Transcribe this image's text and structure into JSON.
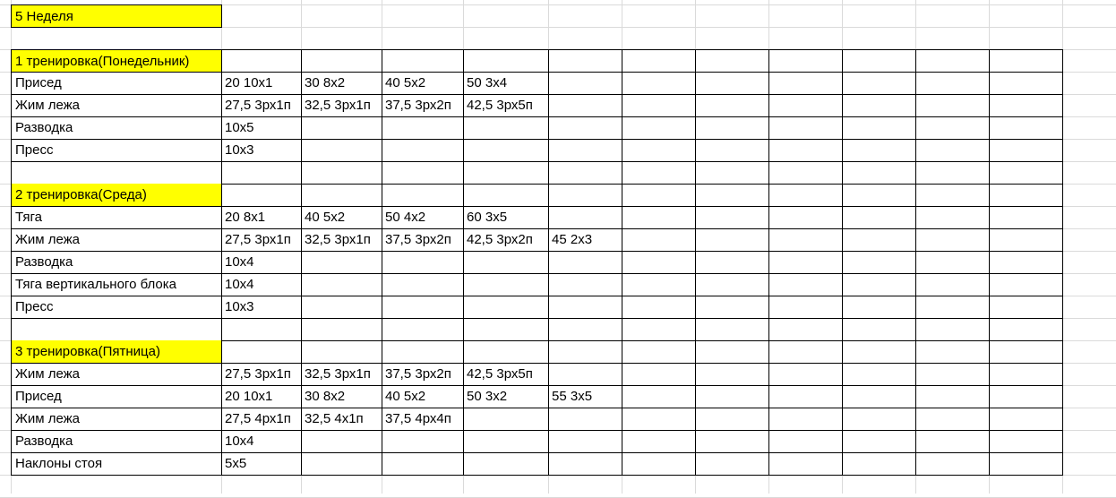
{
  "highlight_color": "#ffff00",
  "title": {
    "text": "5 Неделя",
    "highlighted": true
  },
  "rows": [
    {
      "cells": [
        "1 тренировка(Понедельник)"
      ],
      "highlighted": true
    },
    {
      "cells": [
        "Присед",
        "20 10x1",
        "30 8x2",
        "40 5x2",
        "50 3x4"
      ]
    },
    {
      "cells": [
        "Жим лежа",
        "27,5 3рх1п",
        "32,5 3рх1п",
        "37,5 3рх2п",
        "42,5 3рх5п"
      ]
    },
    {
      "cells": [
        "Разводка",
        "10x5"
      ]
    },
    {
      "cells": [
        "Пресс",
        "10x3"
      ]
    },
    {
      "cells": []
    },
    {
      "cells": [
        "2 тренировка(Среда)"
      ],
      "highlighted": true
    },
    {
      "cells": [
        "Тяга",
        "20 8x1",
        "40 5x2",
        "50 4x2",
        "60 3x5"
      ]
    },
    {
      "cells": [
        "Жим лежа",
        "27,5 3рх1п",
        "32,5 3рх1п",
        "37,5 3рх2п",
        "42,5 3рх2п",
        "45 2x3"
      ]
    },
    {
      "cells": [
        "Разводка",
        "10x4"
      ]
    },
    {
      "cells": [
        "Тяга вертикального блока",
        "10x4"
      ]
    },
    {
      "cells": [
        "Пресс",
        "10x3"
      ]
    },
    {
      "cells": []
    },
    {
      "cells": [
        "3 тренировка(Пятница)"
      ],
      "highlighted": true
    },
    {
      "cells": [
        "Жим лежа",
        "27,5 3рх1п",
        "32,5 3рх1п",
        "37,5 3рх2п",
        "42,5 3рх5п"
      ]
    },
    {
      "cells": [
        "Присед",
        "20 10x1",
        "30 8x2",
        "40 5x2",
        "50 3x2",
        "55 3x5"
      ]
    },
    {
      "cells": [
        "Жим лежа",
        "27,5 4рх1п",
        "32,5 4x1п",
        "37,5 4рх4п"
      ]
    },
    {
      "cells": [
        "Разводка",
        "10x4"
      ]
    },
    {
      "cells": [
        "Наклоны стоя",
        "5x5"
      ]
    }
  ]
}
